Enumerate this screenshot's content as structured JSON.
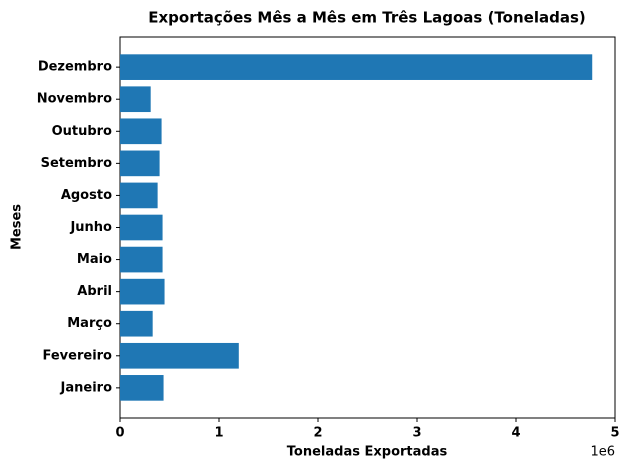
{
  "chart_data": {
    "type": "barh",
    "title": "Exportações Mês a Mês em Três Lagoas (Toneladas)",
    "x_label": "Toneladas Exportadas",
    "y_label": "Meses",
    "x_offset_label": "1e6",
    "categories": [
      "Janeiro",
      "Fevereiro",
      "Março",
      "Abril",
      "Maio",
      "Junho",
      "Agosto",
      "Setembro",
      "Outubro",
      "Novembro",
      "Dezembro"
    ],
    "values": [
      440000,
      1200000,
      330000,
      450000,
      430000,
      430000,
      380000,
      400000,
      420000,
      310000,
      4770000
    ],
    "color": "#1f77b4",
    "xlim": [
      0,
      5000000
    ],
    "xticks": [
      {
        "value": 0,
        "label": "0"
      },
      {
        "value": 1000000,
        "label": "1"
      },
      {
        "value": 2000000,
        "label": "2"
      },
      {
        "value": 3000000,
        "label": "3"
      },
      {
        "value": 4000000,
        "label": "4"
      },
      {
        "value": 5000000,
        "label": "5"
      }
    ],
    "grid": false
  }
}
